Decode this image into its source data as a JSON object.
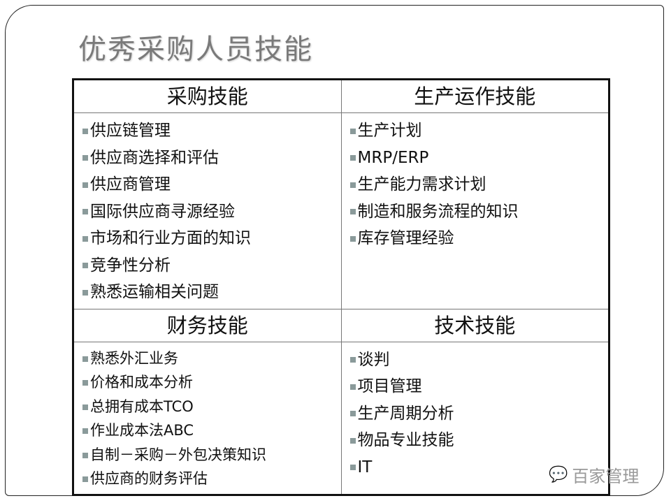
{
  "title": "优秀采购人员技能",
  "sections": [
    {
      "header": "采购技能",
      "items": [
        "供应链管理",
        "供应商选择和评估",
        "供应商管理",
        "国际供应商寻源经验",
        "市场和行业方面的知识",
        "竞争性分析",
        "熟悉运输相关问题"
      ]
    },
    {
      "header": "生产运作技能",
      "items": [
        "生产计划",
        "MRP/ERP",
        "生产能力需求计划",
        "制造和服务流程的知识",
        "库存管理经验"
      ]
    },
    {
      "header": "财务技能",
      "items": [
        "熟悉外汇业务",
        "价格和成本分析",
        "总拥有成本TCO",
        "作业成本法ABC",
        "自制－采购－外包决策知识",
        "供应商的财务评估"
      ]
    },
    {
      "header": "技术技能",
      "items": [
        "谈判",
        "项目管理",
        "生产周期分析",
        "物品专业技能",
        "IT"
      ]
    }
  ],
  "watermark": {
    "text": "百家管理",
    "icon": "wechat-icon"
  }
}
